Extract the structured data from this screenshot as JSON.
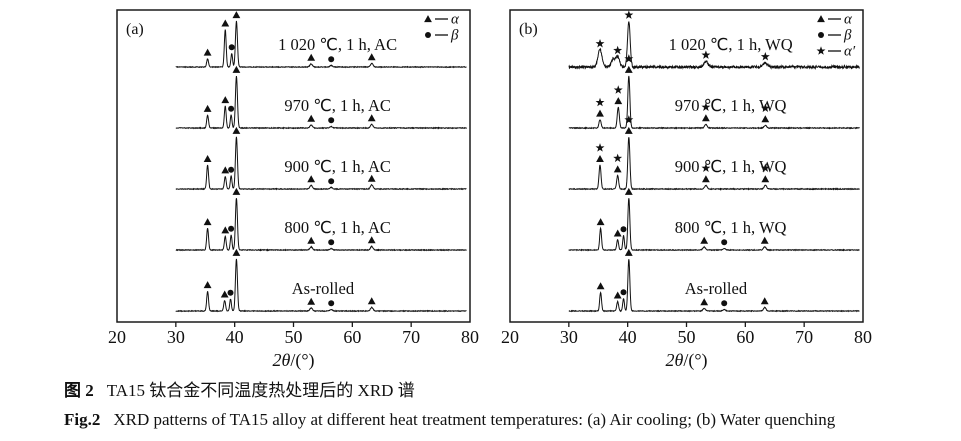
{
  "figure": {
    "caption_zh_label": "图 2",
    "caption_zh_text": "TA15 钛合金不同温度热处理后的 XRD 谱",
    "caption_en_label": "Fig.2",
    "caption_en_text": "XRD patterns of TA15 alloy at different heat treatment temperatures: (a) Air cooling; (b) Water quenching"
  },
  "chart_data": {
    "type": "line",
    "variant": "stacked-xrd-patterns",
    "xlabel": "2θ/(°)",
    "x_range": [
      20,
      80
    ],
    "x_ticks": [
      20,
      30,
      40,
      50,
      60,
      70,
      80
    ],
    "grid": false,
    "legend_position": "top-right-inside",
    "marker_phases": {
      "triangle": "α",
      "circle": "β",
      "star": "α′"
    },
    "panels": [
      {
        "id": "a",
        "corner_label": "(a)",
        "legend": [
          {
            "marker": "triangle",
            "label": "α"
          },
          {
            "marker": "circle",
            "label": "β"
          }
        ],
        "traces": [
          {
            "label": "1 020 ℃, 1 h, AC",
            "label_x": 57.5,
            "noise": 0.35,
            "peaks": [
              {
                "x": 35.4,
                "h": 0.16,
                "w": 0.22,
                "m": [
                  "triangle"
                ]
              },
              {
                "x": 38.4,
                "h": 0.72,
                "w": 0.22,
                "m": [
                  "triangle"
                ]
              },
              {
                "x": 39.5,
                "h": 0.26,
                "w": 0.2,
                "m": [
                  "circle"
                ]
              },
              {
                "x": 40.3,
                "h": 0.88,
                "w": 0.24,
                "m": [
                  "triangle"
                ]
              },
              {
                "x": 53.0,
                "h": 0.06,
                "w": 0.3,
                "m": [
                  "triangle"
                ]
              },
              {
                "x": 56.4,
                "h": 0.03,
                "w": 0.3,
                "m": [
                  "circle"
                ]
              },
              {
                "x": 63.3,
                "h": 0.07,
                "w": 0.3,
                "m": [
                  "triangle"
                ]
              }
            ]
          },
          {
            "label": "970 ℃, 1 h, AC",
            "label_x": 57.5,
            "noise": 0.35,
            "peaks": [
              {
                "x": 35.4,
                "h": 0.25,
                "w": 0.22,
                "m": [
                  "triangle"
                ]
              },
              {
                "x": 38.4,
                "h": 0.42,
                "w": 0.22,
                "m": [
                  "triangle"
                ]
              },
              {
                "x": 39.4,
                "h": 0.25,
                "w": 0.2,
                "m": [
                  "circle"
                ]
              },
              {
                "x": 40.3,
                "h": 1.0,
                "w": 0.24,
                "m": [
                  "triangle"
                ]
              },
              {
                "x": 53.0,
                "h": 0.06,
                "w": 0.3,
                "m": [
                  "triangle"
                ]
              },
              {
                "x": 56.4,
                "h": 0.03,
                "w": 0.3,
                "m": [
                  "circle"
                ]
              },
              {
                "x": 63.3,
                "h": 0.07,
                "w": 0.3,
                "m": [
                  "triangle"
                ]
              }
            ]
          },
          {
            "label": "900 ℃, 1 h, AC",
            "label_x": 57.5,
            "noise": 0.35,
            "peaks": [
              {
                "x": 35.4,
                "h": 0.46,
                "w": 0.22,
                "m": [
                  "triangle"
                ]
              },
              {
                "x": 38.4,
                "h": 0.24,
                "w": 0.22,
                "m": [
                  "triangle"
                ]
              },
              {
                "x": 39.4,
                "h": 0.25,
                "w": 0.2,
                "m": [
                  "circle"
                ]
              },
              {
                "x": 40.3,
                "h": 1.0,
                "w": 0.24,
                "m": [
                  "triangle"
                ]
              },
              {
                "x": 53.0,
                "h": 0.07,
                "w": 0.3,
                "m": [
                  "triangle"
                ]
              },
              {
                "x": 56.4,
                "h": 0.03,
                "w": 0.3,
                "m": [
                  "circle"
                ]
              },
              {
                "x": 63.3,
                "h": 0.08,
                "w": 0.3,
                "m": [
                  "triangle"
                ]
              }
            ]
          },
          {
            "label": "800 ℃, 1 h, AC",
            "label_x": 57.5,
            "noise": 0.35,
            "peaks": [
              {
                "x": 35.4,
                "h": 0.42,
                "w": 0.22,
                "m": [
                  "triangle"
                ]
              },
              {
                "x": 38.4,
                "h": 0.26,
                "w": 0.22,
                "m": [
                  "triangle"
                ]
              },
              {
                "x": 39.4,
                "h": 0.29,
                "w": 0.2,
                "m": [
                  "circle"
                ]
              },
              {
                "x": 40.3,
                "h": 1.0,
                "w": 0.24,
                "m": [
                  "triangle"
                ]
              },
              {
                "x": 53.0,
                "h": 0.06,
                "w": 0.3,
                "m": [
                  "triangle"
                ]
              },
              {
                "x": 56.4,
                "h": 0.03,
                "w": 0.3,
                "m": [
                  "circle"
                ]
              },
              {
                "x": 63.3,
                "h": 0.07,
                "w": 0.3,
                "m": [
                  "triangle"
                ]
              }
            ]
          },
          {
            "label": "As-rolled",
            "label_x": 55,
            "noise": 0.35,
            "peaks": [
              {
                "x": 35.4,
                "h": 0.38,
                "w": 0.22,
                "m": [
                  "triangle"
                ]
              },
              {
                "x": 38.3,
                "h": 0.2,
                "w": 0.22,
                "m": [
                  "triangle"
                ]
              },
              {
                "x": 39.3,
                "h": 0.23,
                "w": 0.2,
                "m": [
                  "circle"
                ]
              },
              {
                "x": 40.3,
                "h": 1.0,
                "w": 0.24,
                "m": [
                  "triangle"
                ]
              },
              {
                "x": 53.0,
                "h": 0.06,
                "w": 0.3,
                "m": [
                  "triangle"
                ]
              },
              {
                "x": 56.4,
                "h": 0.03,
                "w": 0.3,
                "m": [
                  "circle"
                ]
              },
              {
                "x": 63.3,
                "h": 0.07,
                "w": 0.3,
                "m": [
                  "triangle"
                ]
              }
            ]
          }
        ]
      },
      {
        "id": "b",
        "corner_label": "(b)",
        "legend": [
          {
            "marker": "triangle",
            "label": "α"
          },
          {
            "marker": "circle",
            "label": "β"
          },
          {
            "marker": "star",
            "label": "α′"
          }
        ],
        "traces": [
          {
            "label": "1 020 ℃, 1 h, WQ",
            "label_x": 57.5,
            "noise": 1.2,
            "peaks": [
              {
                "x": 35.3,
                "h": 0.33,
                "w": 0.5,
                "m": [
                  "star"
                ]
              },
              {
                "x": 37.5,
                "h": 0.15,
                "w": 0.45
              },
              {
                "x": 38.3,
                "h": 0.2,
                "w": 0.45,
                "m": [
                  "star"
                ]
              },
              {
                "x": 40.2,
                "h": 0.88,
                "w": 0.32,
                "m": [
                  "star"
                ]
              },
              {
                "x": 53.3,
                "h": 0.11,
                "w": 0.5,
                "m": [
                  "star"
                ]
              },
              {
                "x": 63.4,
                "h": 0.08,
                "w": 0.5,
                "m": [
                  "star"
                ]
              }
            ]
          },
          {
            "label": "970 ℃, 1 h, WQ",
            "label_x": 57.5,
            "noise": 0.4,
            "peaks": [
              {
                "x": 35.3,
                "h": 0.16,
                "w": 0.25,
                "m": [
                  "triangle",
                  "star"
                ]
              },
              {
                "x": 38.4,
                "h": 0.4,
                "w": 0.25,
                "m": [
                  "triangle",
                  "star"
                ]
              },
              {
                "x": 40.2,
                "h": 1.0,
                "w": 0.25,
                "m": [
                  "triangle",
                  "star"
                ]
              },
              {
                "x": 53.3,
                "h": 0.07,
                "w": 0.3,
                "m": [
                  "triangle",
                  "star"
                ]
              },
              {
                "x": 63.4,
                "h": 0.05,
                "w": 0.3,
                "m": [
                  "triangle",
                  "star"
                ]
              }
            ]
          },
          {
            "label": "900 ℃, 1 h, WQ",
            "label_x": 57.5,
            "noise": 0.4,
            "peaks": [
              {
                "x": 35.3,
                "h": 0.46,
                "w": 0.24,
                "m": [
                  "triangle",
                  "star"
                ]
              },
              {
                "x": 38.3,
                "h": 0.26,
                "w": 0.24,
                "m": [
                  "triangle",
                  "star"
                ]
              },
              {
                "x": 40.2,
                "h": 1.0,
                "w": 0.25,
                "m": [
                  "triangle",
                  "star"
                ]
              },
              {
                "x": 53.3,
                "h": 0.07,
                "w": 0.3,
                "m": [
                  "triangle",
                  "star"
                ]
              },
              {
                "x": 63.4,
                "h": 0.07,
                "w": 0.3,
                "m": [
                  "triangle",
                  "star"
                ]
              }
            ]
          },
          {
            "label": "800 ℃, 1 h, WQ",
            "label_x": 57.5,
            "noise": 0.35,
            "peaks": [
              {
                "x": 35.4,
                "h": 0.42,
                "w": 0.22,
                "m": [
                  "triangle"
                ]
              },
              {
                "x": 38.3,
                "h": 0.2,
                "w": 0.22,
                "m": [
                  "triangle"
                ]
              },
              {
                "x": 39.3,
                "h": 0.28,
                "w": 0.2,
                "m": [
                  "circle"
                ]
              },
              {
                "x": 40.2,
                "h": 1.0,
                "w": 0.24,
                "m": [
                  "triangle"
                ]
              },
              {
                "x": 53.0,
                "h": 0.06,
                "w": 0.3,
                "m": [
                  "triangle"
                ]
              },
              {
                "x": 56.4,
                "h": 0.03,
                "w": 0.3,
                "m": [
                  "circle"
                ]
              },
              {
                "x": 63.3,
                "h": 0.06,
                "w": 0.3,
                "m": [
                  "triangle"
                ]
              }
            ]
          },
          {
            "label": "As-rolled",
            "label_x": 55,
            "noise": 0.35,
            "peaks": [
              {
                "x": 35.4,
                "h": 0.36,
                "w": 0.22,
                "m": [
                  "triangle"
                ]
              },
              {
                "x": 38.3,
                "h": 0.18,
                "w": 0.22,
                "m": [
                  "triangle"
                ]
              },
              {
                "x": 39.3,
                "h": 0.24,
                "w": 0.2,
                "m": [
                  "circle"
                ]
              },
              {
                "x": 40.2,
                "h": 1.0,
                "w": 0.24,
                "m": [
                  "triangle"
                ]
              },
              {
                "x": 53.0,
                "h": 0.05,
                "w": 0.3,
                "m": [
                  "triangle"
                ]
              },
              {
                "x": 56.4,
                "h": 0.03,
                "w": 0.3,
                "m": [
                  "circle"
                ]
              },
              {
                "x": 63.3,
                "h": 0.07,
                "w": 0.3,
                "m": [
                  "triangle"
                ]
              }
            ]
          }
        ]
      }
    ]
  }
}
